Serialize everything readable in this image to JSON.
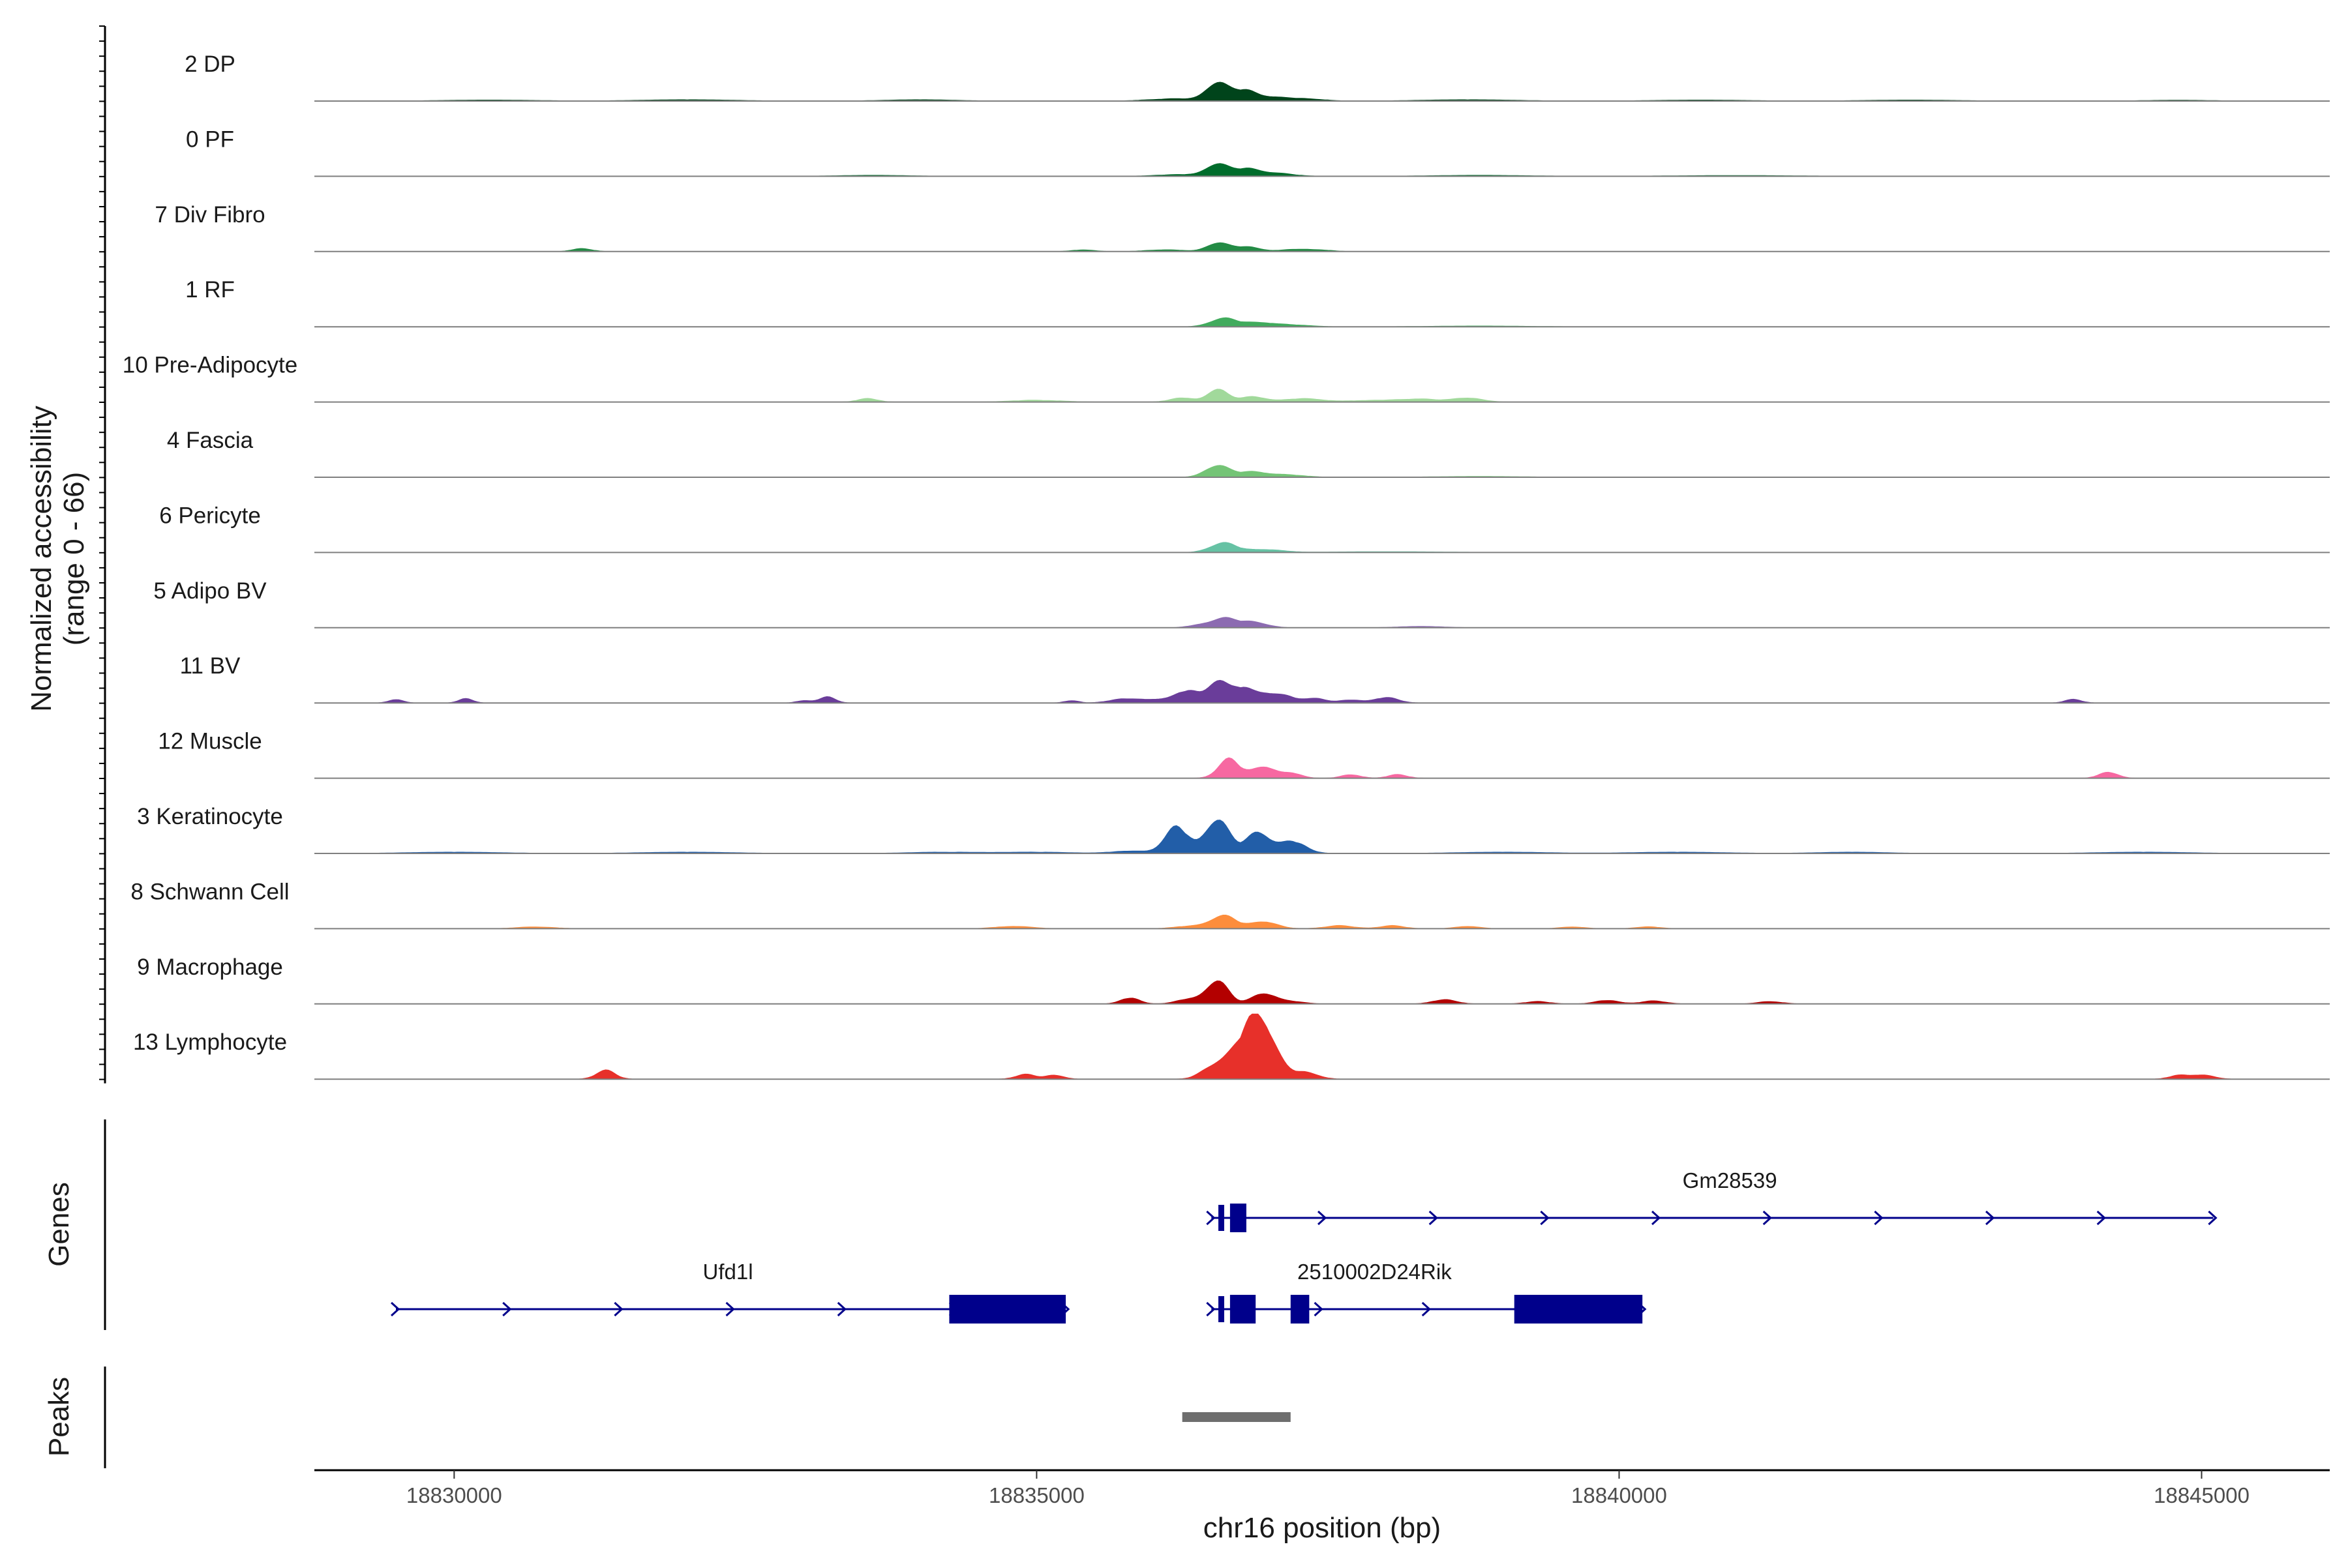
{
  "chart_data": {
    "type": "area",
    "chromosome": "chr16",
    "xlim": [
      18828800,
      18846100
    ],
    "xlabel": "chr16 position (bp)",
    "xticks": [
      18830000,
      18835000,
      18840000,
      18845000
    ],
    "xtick_labels": [
      "18830000",
      "18835000",
      "18840000",
      "18845000"
    ],
    "coverage_ylabel": "Normalized accessibility",
    "coverage_range_label": "(range 0 - 66)",
    "ylim": [
      0,
      66
    ],
    "genes_label": "Genes",
    "peaks_label": "Peaks",
    "series": [
      {
        "name": "2 DP",
        "color": "#00441b",
        "peaks": [
          [
            18836550,
            0.3,
            90
          ],
          [
            18836780,
            0.17,
            100
          ],
          [
            18836200,
            0.04,
            220
          ],
          [
            18837000,
            0.06,
            130
          ],
          [
            18837300,
            0.04,
            150
          ],
          [
            18834000,
            0.02,
            300
          ],
          [
            18832000,
            0.02,
            400
          ],
          [
            18830300,
            0.015,
            400
          ],
          [
            18838700,
            0.02,
            400
          ],
          [
            18840700,
            0.015,
            400
          ],
          [
            18842500,
            0.015,
            400
          ],
          [
            18844800,
            0.012,
            300
          ]
        ]
      },
      {
        "name": "0 PF",
        "color": "#006d2c",
        "peaks": [
          [
            18836550,
            0.2,
            90
          ],
          [
            18836800,
            0.12,
            110
          ],
          [
            18837050,
            0.05,
            150
          ],
          [
            18836250,
            0.03,
            200
          ],
          [
            18833600,
            0.015,
            300
          ],
          [
            18838800,
            0.015,
            400
          ],
          [
            18841000,
            0.012,
            500
          ]
        ]
      },
      {
        "name": "7 Div Fibro",
        "color": "#238b45",
        "peaks": [
          [
            18836550,
            0.14,
            90
          ],
          [
            18836800,
            0.08,
            120
          ],
          [
            18836100,
            0.03,
            150
          ],
          [
            18831100,
            0.05,
            80
          ],
          [
            18835400,
            0.025,
            100
          ],
          [
            18837400,
            0.03,
            120
          ],
          [
            18837200,
            0.03,
            100
          ]
        ]
      },
      {
        "name": "1 RF",
        "color": "#41ab5d",
        "peaks": [
          [
            18836600,
            0.14,
            110
          ],
          [
            18836900,
            0.07,
            130
          ],
          [
            18837200,
            0.03,
            150
          ],
          [
            18838800,
            0.012,
            400
          ]
        ]
      },
      {
        "name": "10 Pre-Adipocyte",
        "color": "#a1d99b",
        "peaks": [
          [
            18836550,
            0.22,
            80
          ],
          [
            18836250,
            0.07,
            100
          ],
          [
            18836850,
            0.09,
            120
          ],
          [
            18837300,
            0.06,
            150
          ],
          [
            18833550,
            0.06,
            80
          ],
          [
            18835000,
            0.03,
            200
          ],
          [
            18838300,
            0.05,
            150
          ],
          [
            18838700,
            0.07,
            120
          ],
          [
            18837900,
            0.03,
            200
          ]
        ]
      },
      {
        "name": "4 Fascia",
        "color": "#74c476",
        "peaks": [
          [
            18836550,
            0.2,
            100
          ],
          [
            18836850,
            0.09,
            120
          ],
          [
            18837150,
            0.04,
            150
          ],
          [
            18838800,
            0.012,
            400
          ]
        ]
      },
      {
        "name": "6 Pericyte",
        "color": "#66c2a4",
        "peaks": [
          [
            18836600,
            0.16,
            110
          ],
          [
            18836950,
            0.05,
            150
          ],
          [
            18838000,
            0.012,
            500
          ]
        ]
      },
      {
        "name": "5 Adipo BV",
        "color": "#8c6bb1",
        "peaks": [
          [
            18836600,
            0.15,
            100
          ],
          [
            18836850,
            0.1,
            120
          ],
          [
            18836400,
            0.04,
            100
          ],
          [
            18838300,
            0.02,
            200
          ]
        ]
      },
      {
        "name": "11 BV",
        "color": "#6a3d9a",
        "peaks": [
          [
            18836550,
            0.36,
            80
          ],
          [
            18836300,
            0.2,
            100
          ],
          [
            18836750,
            0.24,
            90
          ],
          [
            18836950,
            0.15,
            100
          ],
          [
            18835750,
            0.07,
            120
          ],
          [
            18836050,
            0.06,
            120
          ],
          [
            18837150,
            0.1,
            100
          ],
          [
            18837400,
            0.08,
            80
          ],
          [
            18837700,
            0.05,
            100
          ],
          [
            18838000,
            0.09,
            100
          ],
          [
            18829500,
            0.06,
            60
          ],
          [
            18830100,
            0.07,
            60
          ],
          [
            18833200,
            0.1,
            70
          ],
          [
            18833000,
            0.04,
            60
          ],
          [
            18835300,
            0.04,
            60
          ],
          [
            18843900,
            0.06,
            70
          ]
        ]
      },
      {
        "name": "12 Muscle",
        "color": "#f768a1",
        "peaks": [
          [
            18836650,
            0.32,
            90
          ],
          [
            18836950,
            0.2,
            100
          ],
          [
            18837200,
            0.08,
            80
          ],
          [
            18837700,
            0.06,
            80
          ],
          [
            18838100,
            0.06,
            80
          ],
          [
            18844200,
            0.1,
            80
          ]
        ]
      },
      {
        "name": "3 Keratinocyte",
        "color": "#225ea8",
        "peaks": [
          [
            18836200,
            0.45,
            100
          ],
          [
            18836550,
            0.58,
            100
          ],
          [
            18836900,
            0.36,
            100
          ],
          [
            18837200,
            0.2,
            110
          ],
          [
            18835800,
            0.04,
            150
          ],
          [
            18835000,
            0.02,
            300
          ],
          [
            18834200,
            0.02,
            300
          ],
          [
            18830000,
            0.02,
            400
          ],
          [
            18832000,
            0.02,
            400
          ],
          [
            18839000,
            0.02,
            400
          ],
          [
            18840500,
            0.02,
            400
          ],
          [
            18842000,
            0.02,
            300
          ],
          [
            18844500,
            0.02,
            400
          ]
        ]
      },
      {
        "name": "8 Schwann Cell",
        "color": "#fd8d3c",
        "peaks": [
          [
            18836600,
            0.22,
            110
          ],
          [
            18836950,
            0.12,
            110
          ],
          [
            18836300,
            0.04,
            120
          ],
          [
            18834800,
            0.04,
            150
          ],
          [
            18837600,
            0.05,
            120
          ],
          [
            18838050,
            0.05,
            100
          ],
          [
            18838700,
            0.04,
            100
          ],
          [
            18830700,
            0.03,
            150
          ],
          [
            18840250,
            0.03,
            100
          ],
          [
            18839600,
            0.03,
            100
          ]
        ]
      },
      {
        "name": "9 Macrophage",
        "color": "#b30000",
        "peaks": [
          [
            18836550,
            0.4,
            90
          ],
          [
            18836950,
            0.18,
            100
          ],
          [
            18836300,
            0.08,
            100
          ],
          [
            18835800,
            0.1,
            80
          ],
          [
            18838500,
            0.07,
            100
          ],
          [
            18839300,
            0.04,
            100
          ],
          [
            18839900,
            0.06,
            100
          ],
          [
            18840300,
            0.05,
            100
          ],
          [
            18841300,
            0.04,
            100
          ],
          [
            18837200,
            0.04,
            100
          ]
        ]
      },
      {
        "name": "13 Lymphocyte",
        "color": "#e7302a",
        "peaks": [
          [
            18836900,
            1.0,
            120
          ],
          [
            18836700,
            0.3,
            130
          ],
          [
            18836500,
            0.15,
            100
          ],
          [
            18837300,
            0.12,
            110
          ],
          [
            18837050,
            0.1,
            100
          ],
          [
            18831300,
            0.15,
            80
          ],
          [
            18834900,
            0.08,
            80
          ],
          [
            18835150,
            0.07,
            80
          ],
          [
            18845000,
            0.07,
            100
          ],
          [
            18844800,
            0.06,
            80
          ]
        ]
      }
    ],
    "genes": [
      {
        "name": "Gm28539",
        "start": 18836500,
        "end": 18845100,
        "row": 0,
        "strand": "+",
        "exons": [
          [
            18836560,
            18836610
          ],
          [
            18836660,
            18836800
          ]
        ]
      },
      {
        "name": "Ufd1l",
        "start": 18829500,
        "end": 18835250,
        "row": 1,
        "strand": "+",
        "exons": [
          [
            18834250,
            18835250
          ]
        ]
      },
      {
        "name": "2510002D24Rik",
        "start": 18836500,
        "end": 18840200,
        "row": 1,
        "strand": "+",
        "exons": [
          [
            18836560,
            18836610
          ],
          [
            18836660,
            18836880
          ],
          [
            18837180,
            18837340
          ],
          [
            18839100,
            18840200
          ]
        ]
      }
    ],
    "peak_regions": [
      [
        18836250,
        18837180
      ]
    ]
  }
}
